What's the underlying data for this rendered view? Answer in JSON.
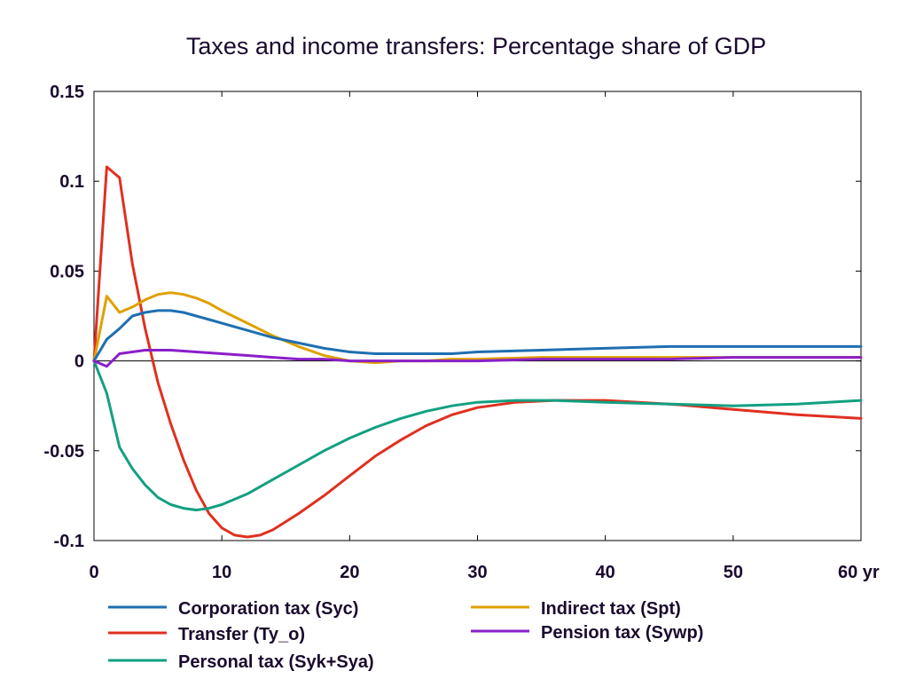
{
  "chart_data": {
    "type": "line",
    "title": "Taxes and income transfers: Percentage share of GDP",
    "xlabel": "",
    "ylabel": "",
    "xlim": [
      0,
      60
    ],
    "ylim": [
      -0.1,
      0.15
    ],
    "x_ticks": [
      {
        "value": 0,
        "label": "0"
      },
      {
        "value": 10,
        "label": "10"
      },
      {
        "value": 20,
        "label": "20"
      },
      {
        "value": 30,
        "label": "30"
      },
      {
        "value": 40,
        "label": "40"
      },
      {
        "value": 50,
        "label": "50"
      },
      {
        "value": 60,
        "label": "60 yr"
      }
    ],
    "y_ticks": [
      {
        "value": 0.15,
        "label": "0.15"
      },
      {
        "value": 0.1,
        "label": "0.1"
      },
      {
        "value": 0.05,
        "label": "0.05"
      },
      {
        "value": 0,
        "label": "0"
      },
      {
        "value": -0.05,
        "label": "-0.05"
      },
      {
        "value": -0.1,
        "label": "-0.1"
      }
    ],
    "grid": false,
    "zero_line": true,
    "legend_position": "bottom",
    "series": [
      {
        "name": "Corporation tax (Syc)",
        "color": "#1f6fb0",
        "x": [
          0,
          1,
          2,
          3,
          4,
          5,
          6,
          7,
          8,
          9,
          10,
          12,
          14,
          16,
          18,
          20,
          22,
          24,
          26,
          28,
          30,
          35,
          40,
          45,
          50,
          55,
          60
        ],
        "y": [
          0,
          0.012,
          0.018,
          0.025,
          0.027,
          0.028,
          0.028,
          0.027,
          0.025,
          0.023,
          0.021,
          0.017,
          0.013,
          0.01,
          0.007,
          0.005,
          0.004,
          0.004,
          0.004,
          0.004,
          0.005,
          0.006,
          0.007,
          0.008,
          0.008,
          0.008,
          0.008
        ]
      },
      {
        "name": "Indirect tax (Spt)",
        "color": "#e0a000",
        "x": [
          0,
          1,
          2,
          3,
          4,
          5,
          6,
          7,
          8,
          9,
          10,
          12,
          14,
          16,
          18,
          20,
          22,
          24,
          26,
          28,
          30,
          35,
          40,
          45,
          50,
          55,
          60
        ],
        "y": [
          0,
          0.036,
          0.027,
          0.03,
          0.034,
          0.037,
          0.038,
          0.037,
          0.035,
          0.032,
          0.028,
          0.021,
          0.014,
          0.008,
          0.003,
          0.0,
          -0.001,
          0.0,
          0.0,
          0.001,
          0.001,
          0.002,
          0.002,
          0.002,
          0.002,
          0.002,
          0.002
        ]
      },
      {
        "name": "Transfer (Ty_o)",
        "color": "#e03020",
        "x": [
          0,
          1,
          2,
          3,
          4,
          5,
          6,
          7,
          8,
          9,
          10,
          11,
          12,
          13,
          14,
          16,
          18,
          20,
          22,
          24,
          26,
          28,
          30,
          33,
          36,
          40,
          45,
          50,
          55,
          60
        ],
        "y": [
          0,
          0.108,
          0.102,
          0.054,
          0.018,
          -0.012,
          -0.035,
          -0.055,
          -0.072,
          -0.085,
          -0.093,
          -0.097,
          -0.098,
          -0.097,
          -0.094,
          -0.085,
          -0.075,
          -0.064,
          -0.053,
          -0.044,
          -0.036,
          -0.03,
          -0.026,
          -0.023,
          -0.022,
          -0.022,
          -0.024,
          -0.027,
          -0.03,
          -0.032
        ]
      },
      {
        "name": "Pension tax (Sywp)",
        "color": "#8a1fc8",
        "x": [
          0,
          1,
          2,
          3,
          4,
          5,
          6,
          8,
          10,
          12,
          14,
          16,
          18,
          20,
          22,
          24,
          26,
          28,
          30,
          35,
          40,
          45,
          50,
          55,
          60
        ],
        "y": [
          0,
          -0.003,
          0.004,
          0.005,
          0.006,
          0.006,
          0.006,
          0.005,
          0.004,
          0.003,
          0.002,
          0.001,
          0.001,
          0.0,
          0.0,
          0.0,
          0.0,
          0.0,
          0.0,
          0.001,
          0.001,
          0.001,
          0.002,
          0.002,
          0.002
        ]
      },
      {
        "name": "Personal tax (Syk+Sya)",
        "color": "#12a080",
        "x": [
          0,
          1,
          2,
          3,
          4,
          5,
          6,
          7,
          8,
          9,
          10,
          12,
          14,
          16,
          18,
          20,
          22,
          24,
          26,
          28,
          30,
          33,
          36,
          40,
          45,
          50,
          55,
          60
        ],
        "y": [
          0,
          -0.018,
          -0.048,
          -0.06,
          -0.069,
          -0.076,
          -0.08,
          -0.082,
          -0.083,
          -0.082,
          -0.08,
          -0.074,
          -0.066,
          -0.058,
          -0.05,
          -0.043,
          -0.037,
          -0.032,
          -0.028,
          -0.025,
          -0.023,
          -0.022,
          -0.022,
          -0.023,
          -0.024,
          -0.025,
          -0.024,
          -0.022
        ]
      }
    ]
  }
}
